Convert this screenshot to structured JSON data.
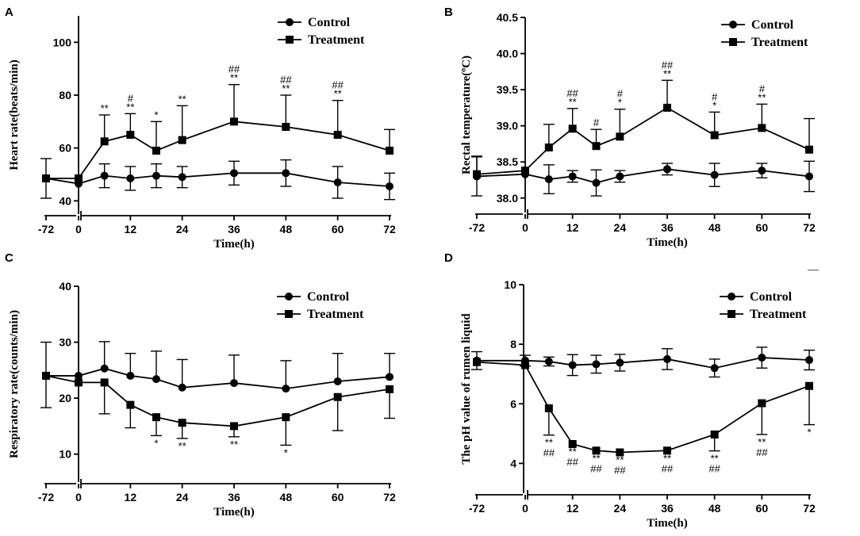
{
  "chart_data": [
    {
      "panel": "A",
      "type": "line",
      "ylabel": "Heart rate(beats/min)",
      "xlabel": "Time(h)",
      "ylim": [
        35,
        110
      ],
      "yticks": [
        40,
        60,
        80,
        100
      ],
      "xticks": [
        "-72",
        "0",
        "12",
        "24",
        "36",
        "48",
        "60",
        "72"
      ],
      "legend_position": "top-right",
      "series": [
        {
          "name": "Control",
          "marker": "circle",
          "x": [
            -72,
            0,
            6,
            12,
            18,
            24,
            36,
            48,
            60,
            72
          ],
          "values": [
            48.5,
            46.5,
            49.5,
            48.5,
            49.5,
            49,
            50.5,
            50.5,
            47,
            45.5
          ],
          "err": [
            7.5,
            0,
            4.5,
            4.5,
            4.5,
            4,
            4.5,
            5,
            6,
            5
          ],
          "err_dir": "both"
        },
        {
          "name": "Treatment",
          "marker": "square",
          "x": [
            -72,
            0,
            6,
            12,
            18,
            24,
            36,
            48,
            60,
            72
          ],
          "values": [
            48.5,
            48.5,
            62.5,
            65,
            59,
            63,
            70,
            68,
            65,
            59
          ],
          "err": [
            0,
            0,
            10,
            8,
            11,
            13,
            14,
            12,
            13,
            8
          ],
          "err_dir": "up",
          "annotations": [
            {
              "x": 6,
              "marks": [
                "**"
              ]
            },
            {
              "x": 12,
              "marks": [
                "#",
                "**"
              ]
            },
            {
              "x": 18,
              "marks": [
                "*"
              ]
            },
            {
              "x": 24,
              "marks": [
                "**"
              ]
            },
            {
              "x": 36,
              "marks": [
                "##",
                "**"
              ]
            },
            {
              "x": 48,
              "marks": [
                "##",
                "**"
              ]
            },
            {
              "x": 60,
              "marks": [
                "##",
                "**"
              ]
            }
          ]
        }
      ]
    },
    {
      "panel": "B",
      "type": "line",
      "ylabel": "Rectal temperature(ºC)",
      "xlabel": "Time(h)",
      "ylim": [
        37.8,
        40.5
      ],
      "yticks": [
        38.0,
        38.5,
        39.0,
        39.5,
        40.0,
        40.5
      ],
      "xticks": [
        "-72",
        "0",
        "12",
        "24",
        "36",
        "48",
        "60",
        "72"
      ],
      "legend_position": "top-right",
      "series": [
        {
          "name": "Control",
          "marker": "circle",
          "x": [
            -72,
            0,
            6,
            12,
            18,
            24,
            36,
            48,
            60,
            72
          ],
          "values": [
            38.3,
            38.33,
            38.26,
            38.3,
            38.21,
            38.3,
            38.4,
            38.32,
            38.38,
            38.3
          ],
          "err": [
            0.27,
            0,
            0.2,
            0.08,
            0.18,
            0.08,
            0.08,
            0.16,
            0.1,
            0.21
          ],
          "err_dir": "both"
        },
        {
          "name": "Treatment",
          "marker": "square",
          "x": [
            -72,
            0,
            6,
            12,
            18,
            24,
            36,
            48,
            60,
            72
          ],
          "values": [
            38.33,
            38.38,
            38.7,
            38.96,
            38.72,
            38.85,
            39.25,
            38.87,
            38.97,
            38.67
          ],
          "err": [
            0.25,
            0,
            0.32,
            0.28,
            0.23,
            0.38,
            0.38,
            0.32,
            0.33,
            0.43
          ],
          "err_dir": "up",
          "annotations": [
            {
              "x": 12,
              "marks": [
                "##",
                "**"
              ]
            },
            {
              "x": 18,
              "marks": [
                "#"
              ]
            },
            {
              "x": 24,
              "marks": [
                "#",
                "*"
              ]
            },
            {
              "x": 36,
              "marks": [
                "##",
                "**"
              ]
            },
            {
              "x": 48,
              "marks": [
                "#",
                "*"
              ]
            },
            {
              "x": 60,
              "marks": [
                "#",
                "**"
              ]
            }
          ]
        }
      ]
    },
    {
      "panel": "C",
      "type": "line",
      "ylabel": "Respiratory rate(counts/min)",
      "xlabel": "Time(h)",
      "ylim": [
        5,
        40
      ],
      "yticks": [
        10,
        20,
        30,
        40
      ],
      "xticks": [
        "-72",
        "0",
        "12",
        "24",
        "36",
        "48",
        "60",
        "72"
      ],
      "legend_position": "top-right",
      "series": [
        {
          "name": "Control",
          "marker": "circle",
          "x": [
            -72,
            0,
            6,
            12,
            18,
            24,
            36,
            48,
            60,
            72
          ],
          "values": [
            24,
            24,
            25.3,
            24,
            23.4,
            21.9,
            22.7,
            21.7,
            23,
            23.8
          ],
          "err": [
            6,
            0,
            4.8,
            4,
            5,
            5,
            5,
            5,
            5,
            4.2
          ],
          "err_dir": "up"
        },
        {
          "name": "Treatment",
          "marker": "square",
          "x": [
            -72,
            0,
            6,
            12,
            18,
            24,
            36,
            48,
            60,
            72
          ],
          "values": [
            24,
            22.8,
            22.8,
            18.8,
            16.6,
            15.6,
            15,
            16.6,
            20.2,
            21.6
          ],
          "err": [
            5.7,
            0,
            5.6,
            4.1,
            3.3,
            2.8,
            1.9,
            5,
            6,
            5.2
          ],
          "err_dir": "down",
          "annotations": [
            {
              "x": 18,
              "marks": [
                "*"
              ]
            },
            {
              "x": 24,
              "marks": [
                "**"
              ]
            },
            {
              "x": 36,
              "marks": [
                "**"
              ]
            },
            {
              "x": 48,
              "marks": [
                "*"
              ]
            }
          ]
        }
      ]
    },
    {
      "panel": "D",
      "type": "line",
      "ylabel": "The pH value of rumen liquid",
      "xlabel": "Time(h)",
      "ylim": [
        3,
        10
      ],
      "yticks": [
        4,
        6,
        8,
        10
      ],
      "xticks": [
        "-72",
        "0",
        "12",
        "24",
        "36",
        "48",
        "60",
        "72"
      ],
      "legend_position": "top-right",
      "series": [
        {
          "name": "Control",
          "marker": "circle",
          "x": [
            -72,
            0,
            6,
            12,
            18,
            24,
            36,
            48,
            60,
            72
          ],
          "values": [
            7.45,
            7.45,
            7.42,
            7.3,
            7.33,
            7.38,
            7.5,
            7.2,
            7.55,
            7.47
          ],
          "err": [
            0.3,
            0.18,
            0.15,
            0.35,
            0.3,
            0.28,
            0.35,
            0.3,
            0.35,
            0.33
          ],
          "err_dir": "both"
        },
        {
          "name": "Treatment",
          "marker": "square",
          "x": [
            -72,
            0,
            6,
            12,
            18,
            24,
            36,
            48,
            60,
            72
          ],
          "values": [
            7.4,
            7.3,
            5.85,
            4.65,
            4.43,
            4.37,
            4.43,
            4.97,
            6.02,
            6.6
          ],
          "err": [
            0,
            0,
            0.9,
            0,
            0,
            0,
            0,
            0.55,
            1.05,
            1.3
          ],
          "err_dir": "down",
          "annotations": [
            {
              "x": 6,
              "marks": [
                "**",
                "##"
              ]
            },
            {
              "x": 12,
              "marks": [
                "**",
                "##"
              ]
            },
            {
              "x": 18,
              "marks": [
                "**",
                "##"
              ]
            },
            {
              "x": 24,
              "marks": [
                "**",
                "##"
              ]
            },
            {
              "x": 36,
              "marks": [
                "**",
                "##"
              ]
            },
            {
              "x": 48,
              "marks": [
                "**",
                "##"
              ]
            },
            {
              "x": 60,
              "marks": [
                "**",
                "##"
              ]
            },
            {
              "x": 72,
              "marks": [
                "*"
              ]
            }
          ]
        }
      ]
    }
  ],
  "stray_mark": "—"
}
